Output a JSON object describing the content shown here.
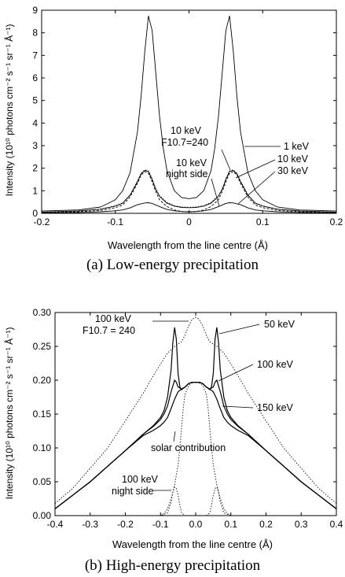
{
  "captions": {
    "a": "(a)  Low-energy precipitation",
    "b": "(b)  High-energy precipitation"
  },
  "chart_data": [
    {
      "type": "line",
      "xlabel": "Wavelength from the line centre (Å)",
      "ylabel": "Intensity (10¹⁰ photons cm⁻² s⁻¹ sr⁻¹ Å⁻¹)",
      "xlim": [
        -0.2,
        0.2
      ],
      "ylim": [
        0,
        9
      ],
      "xticks": [
        "-0.2",
        "-0.1",
        "0",
        "0.1",
        "0.2"
      ],
      "yticks": [
        "0",
        "1",
        "2",
        "3",
        "4",
        "5",
        "6",
        "7",
        "8",
        "9"
      ],
      "grid": false,
      "series": [
        {
          "name": "1 keV",
          "style": "solid",
          "x": [
            -0.2,
            -0.15,
            -0.12,
            -0.1,
            -0.09,
            -0.08,
            -0.07,
            -0.065,
            -0.06,
            -0.055,
            -0.05,
            -0.045,
            -0.04,
            -0.035,
            -0.03,
            -0.02,
            -0.01,
            0,
            0.01,
            0.02,
            0.03,
            0.035,
            0.04,
            0.045,
            0.05,
            0.055,
            0.06,
            0.065,
            0.07,
            0.08,
            0.09,
            0.1,
            0.12,
            0.15,
            0.2
          ],
          "y": [
            0.1,
            0.15,
            0.28,
            0.6,
            1.0,
            1.8,
            3.6,
            5.2,
            7.2,
            8.75,
            8.1,
            6.2,
            4.3,
            2.9,
            1.9,
            1.0,
            0.7,
            0.65,
            0.7,
            1.0,
            1.9,
            2.9,
            4.3,
            6.2,
            8.1,
            8.75,
            7.2,
            5.2,
            3.6,
            1.8,
            1.0,
            0.6,
            0.28,
            0.15,
            0.1
          ]
        },
        {
          "name": "10 keV",
          "style": "solid",
          "x": [
            -0.2,
            -0.15,
            -0.12,
            -0.1,
            -0.09,
            -0.08,
            -0.07,
            -0.065,
            -0.06,
            -0.055,
            -0.05,
            -0.045,
            -0.04,
            -0.03,
            -0.02,
            -0.01,
            0,
            0.01,
            0.02,
            0.03,
            0.04,
            0.045,
            0.05,
            0.055,
            0.06,
            0.065,
            0.07,
            0.08,
            0.09,
            0.1,
            0.12,
            0.15,
            0.2
          ],
          "y": [
            0.05,
            0.1,
            0.18,
            0.32,
            0.45,
            0.8,
            1.4,
            1.75,
            1.9,
            1.85,
            1.5,
            1.05,
            0.75,
            0.45,
            0.32,
            0.26,
            0.25,
            0.26,
            0.32,
            0.45,
            0.75,
            1.05,
            1.5,
            1.85,
            1.9,
            1.75,
            1.4,
            0.8,
            0.45,
            0.32,
            0.18,
            0.1,
            0.05
          ]
        },
        {
          "name": "10 keV F10.7=240",
          "style": "dotted",
          "x": [
            -0.2,
            -0.15,
            -0.12,
            -0.1,
            -0.09,
            -0.08,
            -0.07,
            -0.065,
            -0.06,
            -0.055,
            -0.05,
            -0.045,
            -0.04,
            -0.03,
            -0.02,
            -0.01,
            0,
            0.01,
            0.02,
            0.03,
            0.04,
            0.045,
            0.05,
            0.055,
            0.06,
            0.065,
            0.07,
            0.08,
            0.09,
            0.1,
            0.12,
            0.15,
            0.2
          ],
          "y": [
            0.06,
            0.11,
            0.19,
            0.33,
            0.46,
            0.82,
            1.43,
            1.78,
            1.93,
            1.88,
            1.53,
            1.08,
            0.78,
            0.48,
            0.34,
            0.28,
            0.27,
            0.28,
            0.34,
            0.48,
            0.78,
            1.08,
            1.53,
            1.88,
            1.93,
            1.78,
            1.43,
            0.82,
            0.46,
            0.33,
            0.19,
            0.11,
            0.06
          ]
        },
        {
          "name": "10 keV night side",
          "style": "dashed",
          "x": [
            -0.2,
            -0.15,
            -0.12,
            -0.1,
            -0.09,
            -0.08,
            -0.07,
            -0.065,
            -0.06,
            -0.055,
            -0.05,
            -0.045,
            -0.04,
            -0.03,
            -0.02,
            -0.01,
            0,
            0.01,
            0.02,
            0.03,
            0.04,
            0.045,
            0.05,
            0.055,
            0.06,
            0.065,
            0.07,
            0.08,
            0.09,
            0.1,
            0.12,
            0.15,
            0.2
          ],
          "y": [
            0.03,
            0.07,
            0.13,
            0.25,
            0.37,
            0.72,
            1.33,
            1.7,
            1.85,
            1.78,
            1.4,
            0.95,
            0.6,
            0.3,
            0.15,
            0.08,
            0.06,
            0.08,
            0.15,
            0.3,
            0.6,
            0.95,
            1.4,
            1.78,
            1.85,
            1.7,
            1.33,
            0.72,
            0.37,
            0.25,
            0.13,
            0.07,
            0.03
          ]
        },
        {
          "name": "30 keV",
          "style": "solid",
          "x": [
            -0.2,
            -0.15,
            -0.12,
            -0.1,
            -0.09,
            -0.08,
            -0.07,
            -0.06,
            -0.055,
            -0.05,
            -0.04,
            -0.03,
            -0.02,
            -0.01,
            0,
            0.01,
            0.02,
            0.03,
            0.04,
            0.05,
            0.055,
            0.06,
            0.07,
            0.08,
            0.09,
            0.1,
            0.12,
            0.15,
            0.2
          ],
          "y": [
            0.02,
            0.04,
            0.07,
            0.11,
            0.15,
            0.24,
            0.38,
            0.46,
            0.47,
            0.44,
            0.3,
            0.17,
            0.11,
            0.08,
            0.07,
            0.08,
            0.11,
            0.17,
            0.3,
            0.44,
            0.47,
            0.46,
            0.38,
            0.24,
            0.15,
            0.11,
            0.07,
            0.04,
            0.02
          ]
        }
      ],
      "annotations": [
        "1 keV",
        "10 keV",
        "F10.7=240",
        "10 keV",
        "night side",
        "10 keV",
        "30 keV"
      ]
    },
    {
      "type": "line",
      "xlabel": "Wavelength from the line centre (Å)",
      "ylabel": "Intensity (10¹⁰ photons cm⁻² s⁻¹ sr⁻¹ Å⁻¹)",
      "xlim": [
        -0.4,
        0.4
      ],
      "ylim": [
        0,
        0.3
      ],
      "xticks": [
        "-0.4",
        "-0.3",
        "-0.2",
        "-0.1",
        "0.0",
        "0.1",
        "0.2",
        "0.3",
        "0.4"
      ],
      "yticks": [
        "0.00",
        "0.05",
        "0.10",
        "0.15",
        "0.20",
        "0.25",
        "0.30"
      ],
      "grid": false,
      "series": [
        {
          "name": "50 keV",
          "style": "solid",
          "x": [
            -0.4,
            -0.35,
            -0.3,
            -0.25,
            -0.2,
            -0.15,
            -0.12,
            -0.1,
            -0.09,
            -0.08,
            -0.07,
            -0.065,
            -0.06,
            -0.055,
            -0.05,
            -0.045,
            -0.04,
            -0.03,
            -0.02,
            -0.01,
            0,
            0.01,
            0.02,
            0.03,
            0.04,
            0.045,
            0.05,
            0.055,
            0.06,
            0.065,
            0.07,
            0.08,
            0.09,
            0.1,
            0.12,
            0.15,
            0.2,
            0.25,
            0.3,
            0.35,
            0.4
          ],
          "y": [
            0.01,
            0.03,
            0.05,
            0.073,
            0.096,
            0.12,
            0.133,
            0.145,
            0.155,
            0.175,
            0.215,
            0.255,
            0.278,
            0.26,
            0.21,
            0.19,
            0.186,
            0.19,
            0.195,
            0.197,
            0.197,
            0.197,
            0.195,
            0.19,
            0.186,
            0.19,
            0.21,
            0.26,
            0.278,
            0.255,
            0.215,
            0.175,
            0.155,
            0.145,
            0.133,
            0.12,
            0.096,
            0.073,
            0.05,
            0.03,
            0.01
          ]
        },
        {
          "name": "100 keV",
          "style": "solid",
          "x": [
            -0.4,
            -0.35,
            -0.3,
            -0.25,
            -0.2,
            -0.15,
            -0.12,
            -0.1,
            -0.09,
            -0.08,
            -0.07,
            -0.06,
            -0.055,
            -0.05,
            -0.04,
            -0.03,
            -0.02,
            -0.01,
            0,
            0.01,
            0.02,
            0.03,
            0.04,
            0.05,
            0.055,
            0.06,
            0.07,
            0.08,
            0.09,
            0.1,
            0.12,
            0.15,
            0.2,
            0.25,
            0.3,
            0.35,
            0.4
          ],
          "y": [
            0.01,
            0.03,
            0.05,
            0.073,
            0.096,
            0.12,
            0.132,
            0.142,
            0.15,
            0.162,
            0.183,
            0.2,
            0.197,
            0.19,
            0.187,
            0.19,
            0.195,
            0.197,
            0.197,
            0.197,
            0.195,
            0.19,
            0.187,
            0.19,
            0.197,
            0.2,
            0.183,
            0.162,
            0.15,
            0.142,
            0.132,
            0.12,
            0.096,
            0.073,
            0.05,
            0.03,
            0.01
          ]
        },
        {
          "name": "150 keV",
          "style": "solid",
          "x": [
            -0.4,
            -0.35,
            -0.3,
            -0.25,
            -0.2,
            -0.15,
            -0.12,
            -0.1,
            -0.09,
            -0.08,
            -0.07,
            -0.06,
            -0.05,
            -0.04,
            -0.03,
            -0.02,
            -0.01,
            0,
            0.01,
            0.02,
            0.03,
            0.04,
            0.05,
            0.06,
            0.07,
            0.08,
            0.09,
            0.1,
            0.12,
            0.15,
            0.2,
            0.25,
            0.3,
            0.35,
            0.4
          ],
          "y": [
            0.01,
            0.03,
            0.05,
            0.073,
            0.096,
            0.118,
            0.126,
            0.133,
            0.138,
            0.145,
            0.158,
            0.172,
            0.183,
            0.187,
            0.19,
            0.195,
            0.197,
            0.197,
            0.197,
            0.195,
            0.19,
            0.187,
            0.183,
            0.172,
            0.158,
            0.145,
            0.138,
            0.133,
            0.126,
            0.118,
            0.096,
            0.073,
            0.05,
            0.03,
            0.01
          ]
        },
        {
          "name": "100 keV F10.7 = 240",
          "style": "dotted",
          "x": [
            -0.4,
            -0.35,
            -0.3,
            -0.25,
            -0.2,
            -0.15,
            -0.12,
            -0.1,
            -0.08,
            -0.06,
            -0.04,
            -0.03,
            -0.02,
            -0.01,
            0,
            0.01,
            0.02,
            0.03,
            0.04,
            0.06,
            0.08,
            0.1,
            0.12,
            0.15,
            0.2,
            0.25,
            0.3,
            0.35,
            0.4
          ],
          "y": [
            0.018,
            0.04,
            0.07,
            0.1,
            0.14,
            0.18,
            0.207,
            0.224,
            0.24,
            0.25,
            0.257,
            0.267,
            0.28,
            0.29,
            0.293,
            0.29,
            0.28,
            0.267,
            0.257,
            0.25,
            0.24,
            0.224,
            0.207,
            0.18,
            0.14,
            0.1,
            0.07,
            0.04,
            0.018
          ]
        },
        {
          "name": "solar contribution",
          "style": "dotted",
          "x": [
            -0.1,
            -0.09,
            -0.08,
            -0.07,
            -0.06,
            -0.05,
            -0.045,
            -0.04,
            -0.035,
            -0.03,
            -0.02,
            -0.01,
            0,
            0.01,
            0.02,
            0.03,
            0.035,
            0.04,
            0.045,
            0.05,
            0.06,
            0.07,
            0.08,
            0.09,
            0.1
          ],
          "y": [
            0.0,
            0.003,
            0.01,
            0.025,
            0.045,
            0.075,
            0.1,
            0.13,
            0.16,
            0.18,
            0.192,
            0.196,
            0.197,
            0.196,
            0.192,
            0.18,
            0.16,
            0.13,
            0.1,
            0.075,
            0.045,
            0.025,
            0.01,
            0.003,
            0.0
          ]
        },
        {
          "name": "100 keV night side",
          "style": "dotted",
          "x": [
            -0.4,
            -0.1,
            -0.08,
            -0.07,
            -0.065,
            -0.06,
            -0.055,
            -0.05,
            -0.045,
            -0.04,
            -0.03,
            0,
            0.03,
            0.04,
            0.045,
            0.05,
            0.055,
            0.06,
            0.065,
            0.07,
            0.08,
            0.1,
            0.4
          ],
          "y": [
            0.0,
            0.0,
            0.004,
            0.02,
            0.035,
            0.042,
            0.04,
            0.03,
            0.015,
            0.004,
            0.0,
            0.0,
            0.0,
            0.004,
            0.015,
            0.03,
            0.04,
            0.042,
            0.035,
            0.02,
            0.004,
            0.0,
            0.0
          ]
        }
      ],
      "annotations": [
        "100 keV",
        "F10.7 = 240",
        "50 keV",
        "100 keV",
        "150 keV",
        "solar contribution",
        "100 keV",
        "night side"
      ]
    }
  ]
}
